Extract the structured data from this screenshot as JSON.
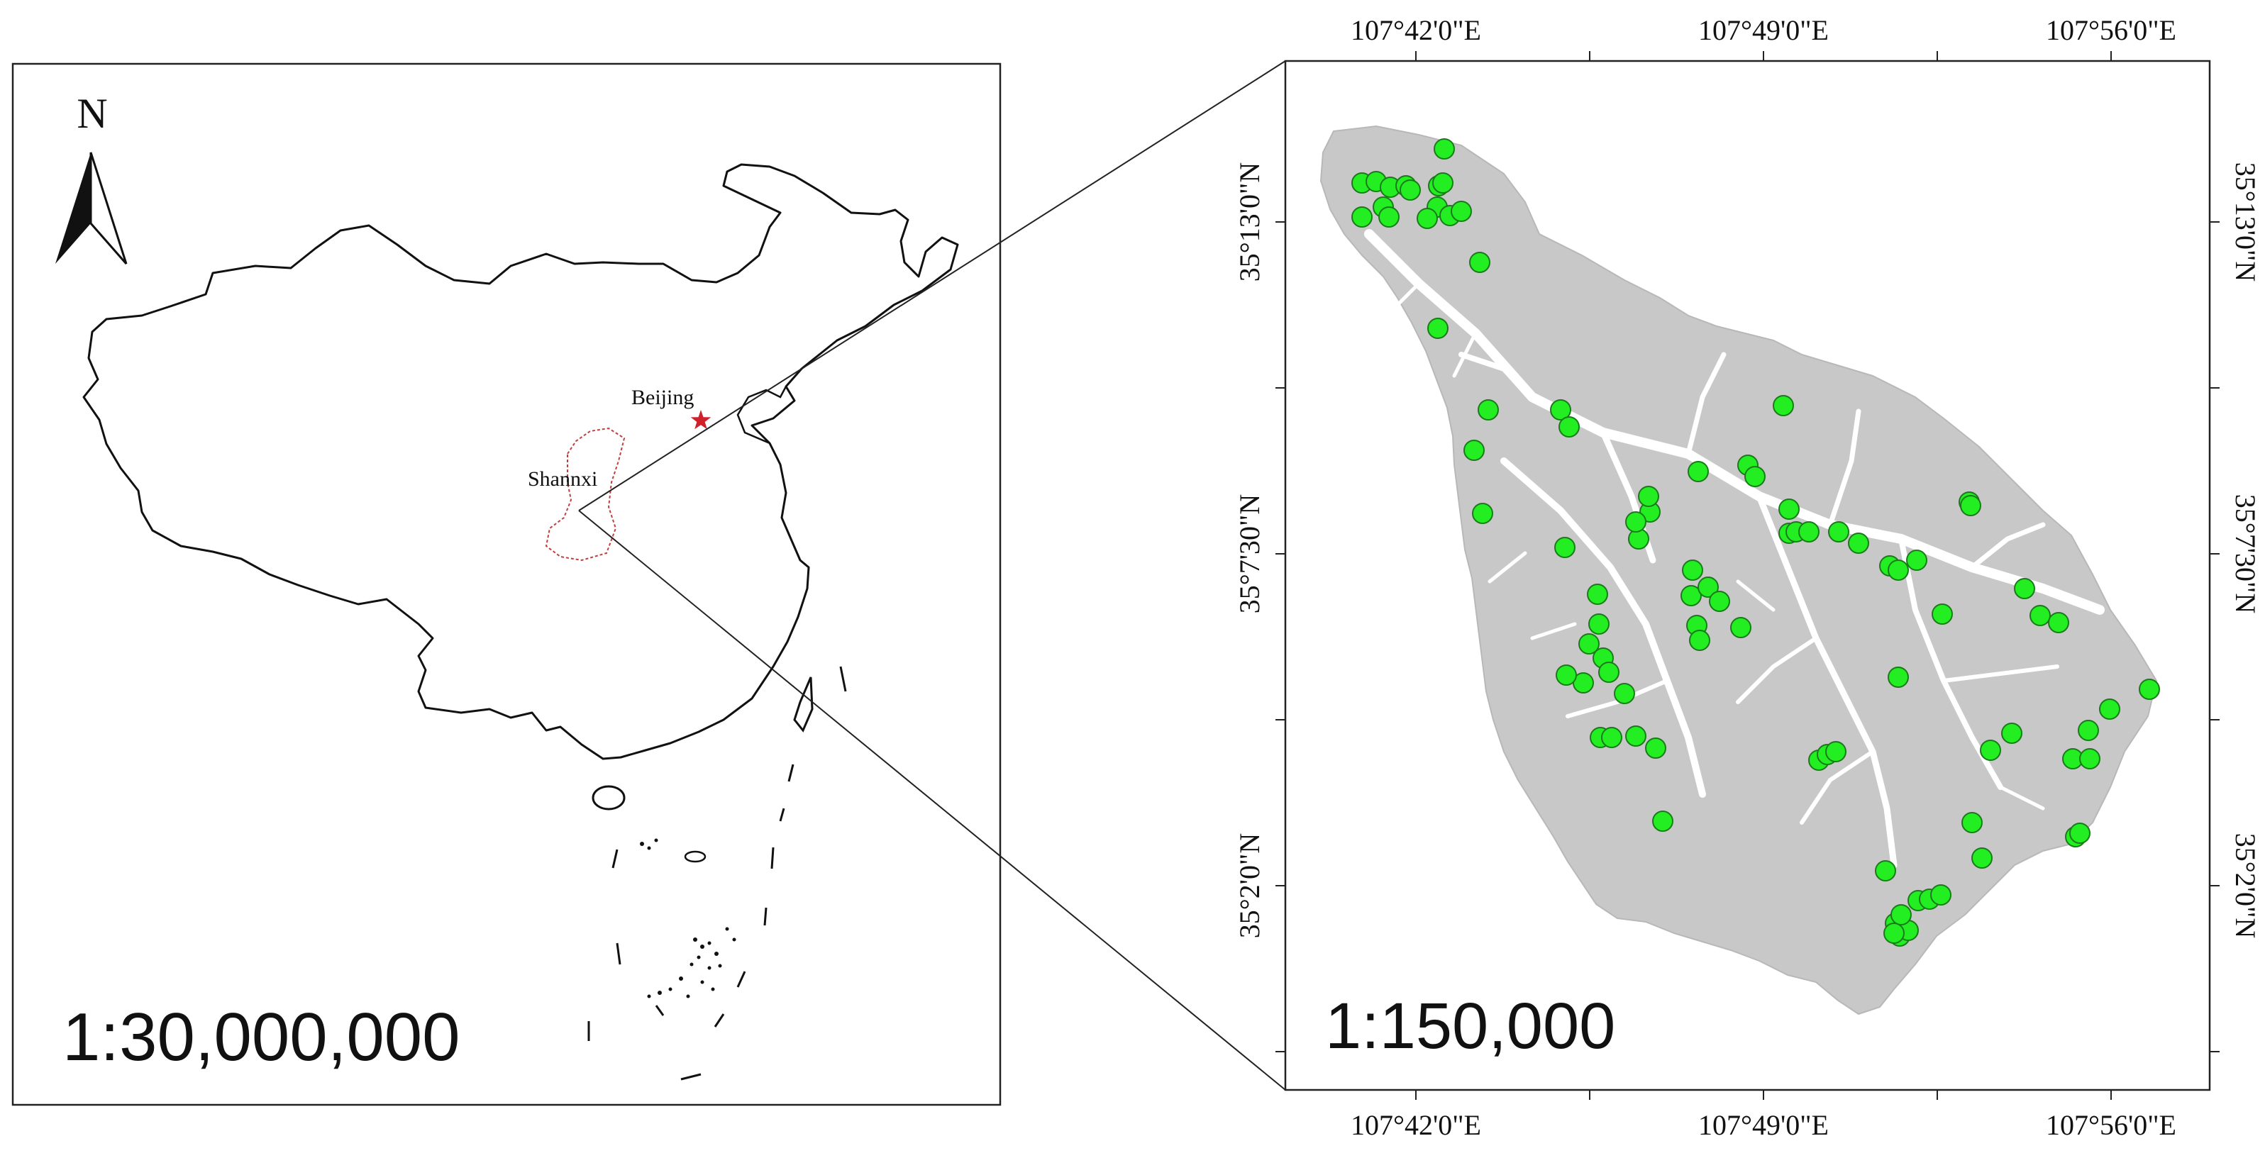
{
  "overview_map": {
    "north_label": "N",
    "scale_text": "1:30,000,000",
    "capital_label": "Beijing",
    "region_label": "Shannxi",
    "capital_marker_color": "#d0202a",
    "region_outline_color": "#c04040"
  },
  "detail_map": {
    "scale_text": "1:150,000",
    "top_ticks": [
      "107°42'0\"E",
      "107°49'0\"E",
      "107°56'0\"E"
    ],
    "bottom_ticks": [
      "107°42'0\"E",
      "107°49'0\"E",
      "107°56'0\"E"
    ],
    "left_ticks": [
      "35°13'0\"N",
      "35°7'30\"N",
      "35°2'0\"N"
    ],
    "right_ticks": [
      "35°13'0\"N",
      "35°7'30\"N",
      "35°2'0\"N"
    ],
    "study_area_color": "#c8c8c8",
    "sample_point_color": "#22ee22",
    "sample_point_count": 90
  },
  "icons": {
    "north_arrow": "north-arrow-icon",
    "capital": "red-star-icon",
    "sample": "green-dot-icon"
  }
}
